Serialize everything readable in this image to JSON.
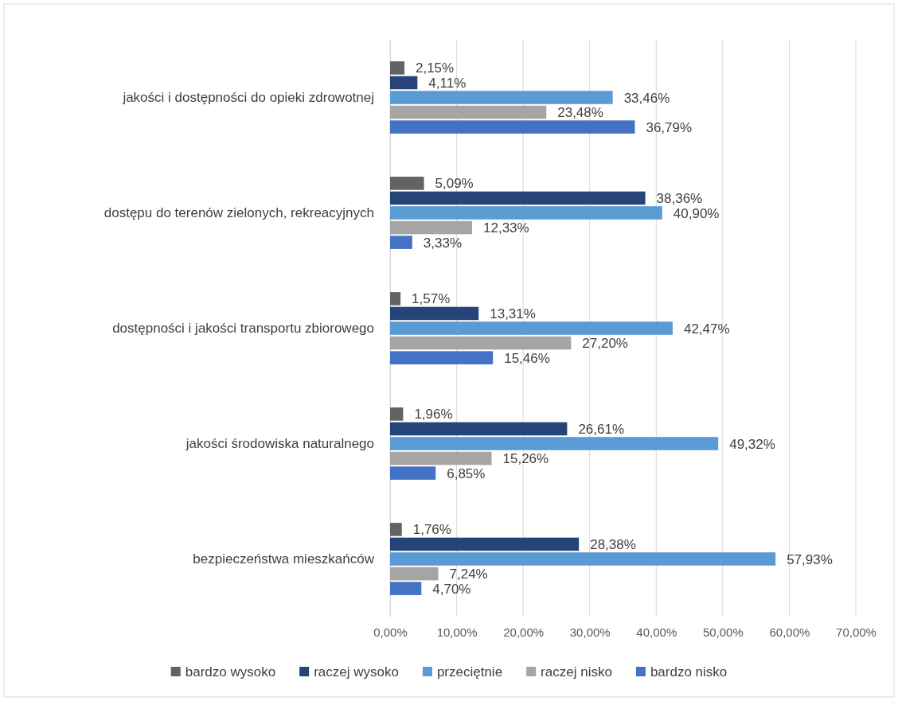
{
  "chart_data": {
    "type": "bar",
    "orientation": "horizontal",
    "categories": [
      "jakości i dostępności do opieki zdrowotnej",
      "dostępu do terenów zielonych, rekreacyjnych",
      "dostępności i jakości transportu zbiorowego",
      "jakości środowiska naturalnego",
      "bezpieczeństwa mieszkańców"
    ],
    "series": [
      {
        "name": "bardzo wysoko",
        "color": "#636363",
        "values": [
          2.15,
          5.09,
          1.57,
          1.96,
          1.76
        ],
        "value_labels": [
          "2,15%",
          "5,09%",
          "1,57%",
          "1,96%",
          "1,76%"
        ]
      },
      {
        "name": "raczej wysoko",
        "color": "#264478",
        "values": [
          4.11,
          38.36,
          13.31,
          26.61,
          28.38
        ],
        "value_labels": [
          "4,11%",
          "38,36%",
          "13,31%",
          "26,61%",
          "28,38%"
        ]
      },
      {
        "name": "przeciętnie",
        "color": "#5b9bd5",
        "values": [
          33.46,
          40.9,
          42.47,
          49.32,
          57.93
        ],
        "value_labels": [
          "33,46%",
          "40,90%",
          "42,47%",
          "49,32%",
          "57,93%"
        ]
      },
      {
        "name": "raczej nisko",
        "color": "#a5a5a5",
        "values": [
          23.48,
          12.33,
          27.2,
          15.26,
          7.24
        ],
        "value_labels": [
          "23,48%",
          "12,33%",
          "27,20%",
          "15,26%",
          "7,24%"
        ]
      },
      {
        "name": "bardzo nisko",
        "color": "#4472c4",
        "values": [
          36.79,
          3.33,
          15.46,
          6.85,
          4.7
        ],
        "value_labels": [
          "36,79%",
          "3,33%",
          "15,46%",
          "6,85%",
          "4,70%"
        ]
      }
    ],
    "xlim": [
      0,
      70
    ],
    "xticks": [
      {
        "value": 0,
        "label": "0,00%"
      },
      {
        "value": 10,
        "label": "10,00%"
      },
      {
        "value": 20,
        "label": "20,00%"
      },
      {
        "value": 30,
        "label": "30,00%"
      },
      {
        "value": 40,
        "label": "40,00%"
      },
      {
        "value": 50,
        "label": "50,00%"
      },
      {
        "value": 60,
        "label": "60,00%"
      },
      {
        "value": 70,
        "label": "70,00%"
      }
    ],
    "grid": "x",
    "legend": "bottom"
  }
}
